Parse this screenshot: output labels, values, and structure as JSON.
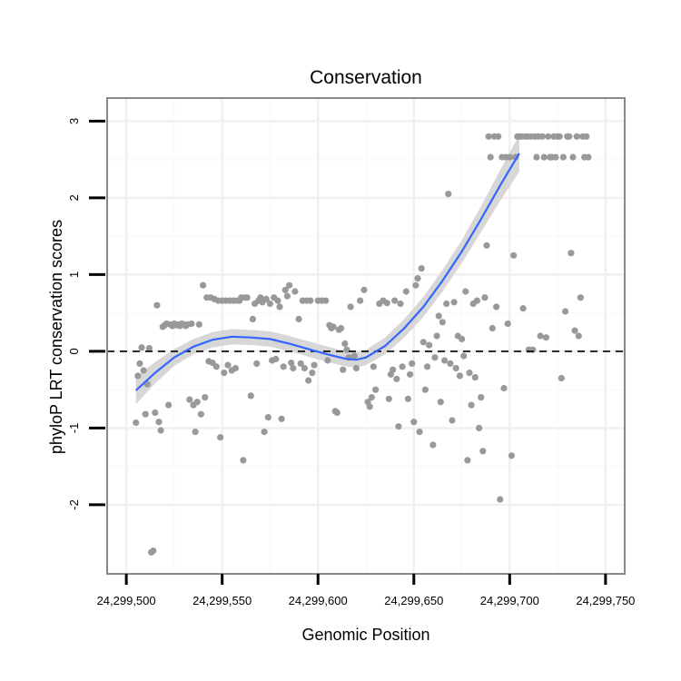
{
  "chart_data": {
    "type": "scatter",
    "title": "Conservation",
    "xlabel": "Genomic Position",
    "ylabel": "phyloP LRT conservation scores",
    "xlim": [
      24299490,
      24299760
    ],
    "ylim": [
      -2.9,
      3.3
    ],
    "x_ticks": [
      {
        "value": 24299500,
        "label": "24,299,500"
      },
      {
        "value": 24299550,
        "label": "24,299,550"
      },
      {
        "value": 24299600,
        "label": "24,299,600"
      },
      {
        "value": 24299650,
        "label": "24,299,650"
      },
      {
        "value": 24299700,
        "label": "24,299,700"
      },
      {
        "value": 24299750,
        "label": "24,299,750"
      }
    ],
    "y_ticks": [
      {
        "value": 3,
        "label": "3"
      },
      {
        "value": 2,
        "label": "2"
      },
      {
        "value": 1,
        "label": "1"
      },
      {
        "value": 0,
        "label": "0"
      },
      {
        "value": -1,
        "label": "-1"
      },
      {
        "value": -2,
        "label": "-2"
      }
    ],
    "reference_line": {
      "y": 0,
      "style": "dashed"
    },
    "colors": {
      "points": "#999999",
      "smooth": "#3366ff",
      "band": "#d5d5d5",
      "panel_border": "#888888",
      "grid": "#f0f0f0"
    },
    "points": [
      [
        24299505,
        -0.93
      ],
      [
        24299506,
        -0.32
      ],
      [
        24299507,
        -0.16
      ],
      [
        24299508,
        0.05
      ],
      [
        24299509,
        -0.25
      ],
      [
        24299510,
        -0.82
      ],
      [
        24299511,
        -0.43
      ],
      [
        24299512,
        0.04
      ],
      [
        24299513,
        -2.62
      ],
      [
        24299514,
        -2.6
      ],
      [
        24299515,
        -0.8
      ],
      [
        24299516,
        0.6
      ],
      [
        24299517,
        -0.92
      ],
      [
        24299518,
        -1.03
      ],
      [
        24299519,
        0.32
      ],
      [
        24299520,
        0.34
      ],
      [
        24299521,
        0.36
      ],
      [
        24299522,
        -0.7
      ],
      [
        24299523,
        0.35
      ],
      [
        24299524,
        0.33
      ],
      [
        24299525,
        0.36
      ],
      [
        24299526,
        0.34
      ],
      [
        24299527,
        0.35
      ],
      [
        24299528,
        0.33
      ],
      [
        24299529,
        0.36
      ],
      [
        24299530,
        0.35
      ],
      [
        24299531,
        0.33
      ],
      [
        24299532,
        0.35
      ],
      [
        24299533,
        -0.63
      ],
      [
        24299534,
        0.36
      ],
      [
        24299535,
        -0.7
      ],
      [
        24299536,
        -1.05
      ],
      [
        24299537,
        -0.66
      ],
      [
        24299538,
        0.35
      ],
      [
        24299539,
        -0.82
      ],
      [
        24299540,
        0.86
      ],
      [
        24299541,
        -0.6
      ],
      [
        24299542,
        0.7
      ],
      [
        24299543,
        -0.13
      ],
      [
        24299544,
        0.7
      ],
      [
        24299545,
        -0.15
      ],
      [
        24299546,
        0.68
      ],
      [
        24299547,
        -0.2
      ],
      [
        24299548,
        0.66
      ],
      [
        24299549,
        -1.12
      ],
      [
        24299550,
        0.66
      ],
      [
        24299551,
        -0.28
      ],
      [
        24299552,
        0.66
      ],
      [
        24299553,
        -0.18
      ],
      [
        24299554,
        0.66
      ],
      [
        24299555,
        -0.25
      ],
      [
        24299556,
        0.66
      ],
      [
        24299557,
        -0.22
      ],
      [
        24299558,
        0.66
      ],
      [
        24299559,
        0.66
      ],
      [
        24299560,
        0.7
      ],
      [
        24299561,
        -1.42
      ],
      [
        24299562,
        0.7
      ],
      [
        24299563,
        0.7
      ],
      [
        24299565,
        -0.58
      ],
      [
        24299566,
        0.42
      ],
      [
        24299567,
        0.62
      ],
      [
        24299568,
        -0.16
      ],
      [
        24299569,
        0.66
      ],
      [
        24299570,
        0.7
      ],
      [
        24299571,
        0.64
      ],
      [
        24299572,
        -1.05
      ],
      [
        24299573,
        0.68
      ],
      [
        24299574,
        -0.86
      ],
      [
        24299575,
        0.62
      ],
      [
        24299576,
        -0.12
      ],
      [
        24299577,
        0.7
      ],
      [
        24299578,
        -0.1
      ],
      [
        24299579,
        0.66
      ],
      [
        24299580,
        0.58
      ],
      [
        24299581,
        -0.88
      ],
      [
        24299582,
        -0.2
      ],
      [
        24299583,
        0.8
      ],
      [
        24299584,
        0.72
      ],
      [
        24299585,
        0.86
      ],
      [
        24299586,
        -0.15
      ],
      [
        24299587,
        -0.22
      ],
      [
        24299588,
        0.78
      ],
      [
        24299590,
        0.42
      ],
      [
        24299591,
        -0.16
      ],
      [
        24299592,
        0.66
      ],
      [
        24299593,
        -0.22
      ],
      [
        24299594,
        0.66
      ],
      [
        24299595,
        -0.38
      ],
      [
        24299596,
        0.66
      ],
      [
        24299597,
        -0.28
      ],
      [
        24299598,
        -0.18
      ],
      [
        24299600,
        0.66
      ],
      [
        24299602,
        0.66
      ],
      [
        24299604,
        0.66
      ],
      [
        24299605,
        -0.12
      ],
      [
        24299606,
        0.34
      ],
      [
        24299607,
        0.3
      ],
      [
        24299608,
        0.32
      ],
      [
        24299609,
        -0.78
      ],
      [
        24299610,
        -0.8
      ],
      [
        24299611,
        0.28
      ],
      [
        24299612,
        0.3
      ],
      [
        24299613,
        -0.24
      ],
      [
        24299614,
        0.1
      ],
      [
        24299615,
        0.02
      ],
      [
        24299616,
        -0.08
      ],
      [
        24299617,
        0.58
      ],
      [
        24299619,
        -0.06
      ],
      [
        24299620,
        -0.22
      ],
      [
        24299622,
        0.66
      ],
      [
        24299624,
        0.8
      ],
      [
        24299626,
        -0.66
      ],
      [
        24299627,
        -0.72
      ],
      [
        24299628,
        -0.6
      ],
      [
        24299629,
        -0.2
      ],
      [
        24299630,
        -0.5
      ],
      [
        24299632,
        0.62
      ],
      [
        24299634,
        0.66
      ],
      [
        24299636,
        0.63
      ],
      [
        24299637,
        -0.62
      ],
      [
        24299638,
        -0.3
      ],
      [
        24299639,
        -0.24
      ],
      [
        24299640,
        0.66
      ],
      [
        24299641,
        -0.36
      ],
      [
        24299642,
        -0.98
      ],
      [
        24299643,
        0.62
      ],
      [
        24299644,
        -0.2
      ],
      [
        24299646,
        0.78
      ],
      [
        24299647,
        -0.62
      ],
      [
        24299648,
        -0.3
      ],
      [
        24299649,
        -0.16
      ],
      [
        24299650,
        -0.92
      ],
      [
        24299651,
        0.86
      ],
      [
        24299652,
        0.95
      ],
      [
        24299653,
        -1.05
      ],
      [
        24299654,
        1.08
      ],
      [
        24299655,
        0.12
      ],
      [
        24299656,
        -0.5
      ],
      [
        24299657,
        -0.2
      ],
      [
        24299658,
        0.08
      ],
      [
        24299660,
        -1.22
      ],
      [
        24299661,
        -0.08
      ],
      [
        24299662,
        0.2
      ],
      [
        24299663,
        0.46
      ],
      [
        24299664,
        -0.66
      ],
      [
        24299665,
        0.38
      ],
      [
        24299666,
        -0.12
      ],
      [
        24299667,
        0.62
      ],
      [
        24299668,
        2.05
      ],
      [
        24299669,
        -0.16
      ],
      [
        24299670,
        -0.9
      ],
      [
        24299671,
        0.64
      ],
      [
        24299672,
        -0.22
      ],
      [
        24299673,
        0.2
      ],
      [
        24299674,
        -0.32
      ],
      [
        24299675,
        0.16
      ],
      [
        24299676,
        -0.06
      ],
      [
        24299677,
        0.78
      ],
      [
        24299678,
        -1.42
      ],
      [
        24299679,
        -0.28
      ],
      [
        24299680,
        -0.7
      ],
      [
        24299681,
        0.62
      ],
      [
        24299682,
        -0.34
      ],
      [
        24299683,
        0.66
      ],
      [
        24299684,
        -1.0
      ],
      [
        24299685,
        -0.6
      ],
      [
        24299686,
        -1.3
      ],
      [
        24299687,
        0.7
      ],
      [
        24299688,
        1.38
      ],
      [
        24299689,
        2.8
      ],
      [
        24299690,
        2.53
      ],
      [
        24299691,
        0.3
      ],
      [
        24299692,
        2.8
      ],
      [
        24299693,
        0.58
      ],
      [
        24299694,
        2.8
      ],
      [
        24299695,
        -1.93
      ],
      [
        24299696,
        2.53
      ],
      [
        24299697,
        -0.48
      ],
      [
        24299698,
        2.53
      ],
      [
        24299699,
        0.36
      ],
      [
        24299700,
        2.53
      ],
      [
        24299701,
        -1.36
      ],
      [
        24299702,
        1.25
      ],
      [
        24299703,
        2.53
      ],
      [
        24299704,
        2.8
      ],
      [
        24299705,
        2.8
      ],
      [
        24299706,
        2.8
      ],
      [
        24299707,
        0.56
      ],
      [
        24299708,
        2.8
      ],
      [
        24299709,
        2.8
      ],
      [
        24299710,
        0.02
      ],
      [
        24299711,
        2.8
      ],
      [
        24299712,
        0.02
      ],
      [
        24299713,
        2.8
      ],
      [
        24299714,
        2.53
      ],
      [
        24299715,
        2.8
      ],
      [
        24299716,
        0.2
      ],
      [
        24299717,
        2.8
      ],
      [
        24299718,
        2.53
      ],
      [
        24299719,
        0.18
      ],
      [
        24299720,
        2.8
      ],
      [
        24299721,
        2.53
      ],
      [
        24299722,
        2.53
      ],
      [
        24299723,
        2.8
      ],
      [
        24299724,
        2.53
      ],
      [
        24299725,
        2.8
      ],
      [
        24299726,
        2.8
      ],
      [
        24299727,
        -0.35
      ],
      [
        24299728,
        2.53
      ],
      [
        24299729,
        0.52
      ],
      [
        24299730,
        2.8
      ],
      [
        24299731,
        2.8
      ],
      [
        24299732,
        1.28
      ],
      [
        24299733,
        2.53
      ],
      [
        24299734,
        0.27
      ],
      [
        24299735,
        2.8
      ],
      [
        24299736,
        0.2
      ],
      [
        24299737,
        0.7
      ],
      [
        24299738,
        2.8
      ],
      [
        24299739,
        2.53
      ],
      [
        24299740,
        2.8
      ],
      [
        24299741,
        2.53
      ]
    ],
    "smooth": [
      [
        24299505,
        -0.51,
        0.18
      ],
      [
        24299515,
        -0.28,
        0.14
      ],
      [
        24299525,
        -0.08,
        0.11
      ],
      [
        24299535,
        0.06,
        0.1
      ],
      [
        24299545,
        0.15,
        0.1
      ],
      [
        24299555,
        0.19,
        0.1
      ],
      [
        24299565,
        0.18,
        0.1
      ],
      [
        24299575,
        0.16,
        0.1
      ],
      [
        24299585,
        0.1,
        0.1
      ],
      [
        24299595,
        0.03,
        0.1
      ],
      [
        24299605,
        -0.04,
        0.1
      ],
      [
        24299615,
        -0.1,
        0.1
      ],
      [
        24299620,
        -0.11,
        0.1
      ],
      [
        24299625,
        -0.08,
        0.1
      ],
      [
        24299635,
        0.07,
        0.11
      ],
      [
        24299645,
        0.3,
        0.12
      ],
      [
        24299655,
        0.58,
        0.13
      ],
      [
        24299665,
        0.92,
        0.14
      ],
      [
        24299675,
        1.3,
        0.15
      ],
      [
        24299685,
        1.72,
        0.17
      ],
      [
        24299695,
        2.16,
        0.2
      ],
      [
        24299705,
        2.58,
        0.24
      ]
    ]
  }
}
